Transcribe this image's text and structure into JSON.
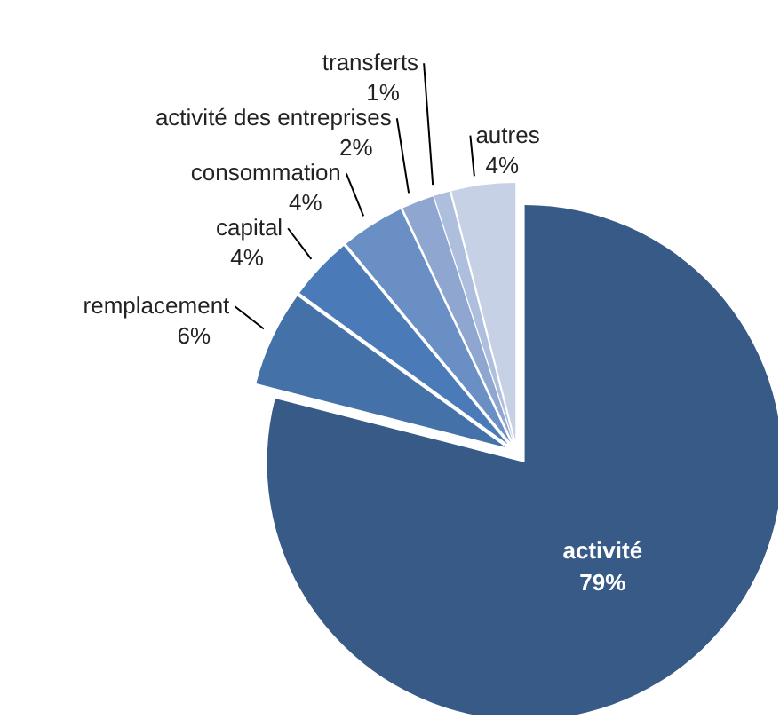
{
  "chart_data": {
    "type": "pie",
    "categories": [
      "activité",
      "remplacement",
      "capital",
      "consommation",
      "activité des entreprises",
      "transferts",
      "autres"
    ],
    "values": [
      79,
      6,
      4,
      4,
      2,
      1,
      4
    ],
    "colors": [
      "#375a87",
      "#4472a8",
      "#4a7bb8",
      "#6a8fc4",
      "#8fa6d0",
      "#aebfde",
      "#c7d1e6"
    ],
    "value_labels": [
      "79%",
      "6%",
      "4%",
      "4%",
      "2%",
      "1%",
      "4%"
    ]
  }
}
